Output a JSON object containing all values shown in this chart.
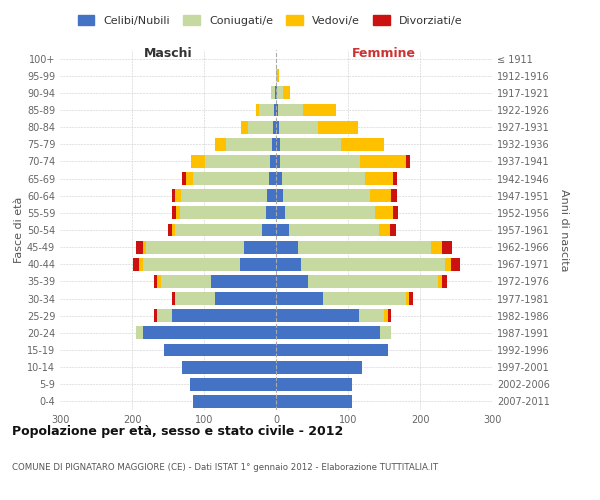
{
  "age_groups": [
    "0-4",
    "5-9",
    "10-14",
    "15-19",
    "20-24",
    "25-29",
    "30-34",
    "35-39",
    "40-44",
    "45-49",
    "50-54",
    "55-59",
    "60-64",
    "65-69",
    "70-74",
    "75-79",
    "80-84",
    "85-89",
    "90-94",
    "95-99",
    "100+"
  ],
  "birth_years": [
    "2007-2011",
    "2002-2006",
    "1997-2001",
    "1992-1996",
    "1987-1991",
    "1982-1986",
    "1977-1981",
    "1972-1976",
    "1967-1971",
    "1962-1966",
    "1957-1961",
    "1952-1956",
    "1947-1951",
    "1942-1946",
    "1937-1941",
    "1932-1936",
    "1927-1931",
    "1922-1926",
    "1917-1921",
    "1912-1916",
    "≤ 1911"
  ],
  "males": {
    "celibi": [
      115,
      120,
      130,
      155,
      185,
      145,
      85,
      90,
      50,
      45,
      20,
      14,
      12,
      10,
      8,
      5,
      4,
      3,
      2,
      0,
      0
    ],
    "coniugati": [
      0,
      0,
      0,
      0,
      10,
      20,
      55,
      70,
      135,
      135,
      120,
      120,
      120,
      105,
      90,
      65,
      35,
      20,
      5,
      0,
      0
    ],
    "vedovi": [
      0,
      0,
      0,
      0,
      0,
      0,
      0,
      5,
      5,
      5,
      5,
      5,
      8,
      10,
      20,
      15,
      10,
      5,
      0,
      0,
      0
    ],
    "divorziati": [
      0,
      0,
      0,
      0,
      0,
      5,
      5,
      5,
      8,
      10,
      5,
      5,
      5,
      5,
      0,
      0,
      0,
      0,
      0,
      0,
      0
    ]
  },
  "females": {
    "nubili": [
      105,
      105,
      120,
      155,
      145,
      115,
      65,
      45,
      35,
      30,
      18,
      12,
      10,
      8,
      6,
      5,
      4,
      3,
      2,
      0,
      0
    ],
    "coniugate": [
      0,
      0,
      0,
      0,
      15,
      35,
      115,
      180,
      200,
      185,
      125,
      125,
      120,
      115,
      110,
      85,
      55,
      35,
      8,
      2,
      0
    ],
    "vedove": [
      0,
      0,
      0,
      0,
      0,
      5,
      5,
      5,
      8,
      15,
      15,
      25,
      30,
      40,
      65,
      60,
      55,
      45,
      10,
      2,
      0
    ],
    "divorziate": [
      0,
      0,
      0,
      0,
      0,
      5,
      5,
      8,
      12,
      15,
      8,
      8,
      8,
      5,
      5,
      0,
      0,
      0,
      0,
      0,
      0
    ]
  },
  "colors": {
    "celibi": "#4472c4",
    "coniugati": "#c5d9a0",
    "vedovi": "#ffc000",
    "divorziati": "#cc1111"
  },
  "xlim": 300,
  "title": "Popolazione per età, sesso e stato civile - 2012",
  "subtitle": "COMUNE DI PIGNATARO MAGGIORE (CE) - Dati ISTAT 1° gennaio 2012 - Elaborazione TUTTITALIA.IT",
  "ylabel_left": "Fasce di età",
  "ylabel_right": "Anni di nascita",
  "xlabel_left": "Maschi",
  "xlabel_right": "Femmine",
  "legend_labels": [
    "Celibi/Nubili",
    "Coniugati/e",
    "Vedovi/e",
    "Divorziati/e"
  ],
  "bg_color": "#ffffff",
  "plot_bg": "#ffffff",
  "grid_color": "#cccccc"
}
